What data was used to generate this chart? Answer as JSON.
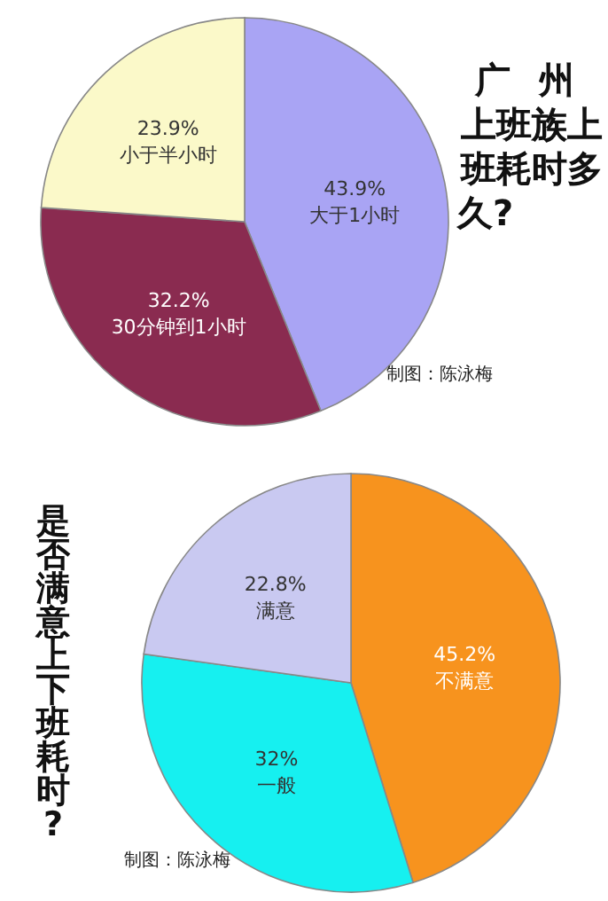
{
  "chart_data": [
    {
      "type": "pie",
      "title": "广州上班族上班耗时多久?",
      "categories": [
        "大于1小时",
        "30分钟到1小时",
        "小于半小时"
      ],
      "values": [
        43.9,
        32.2,
        23.9
      ],
      "value_labels": [
        "43.9%",
        "32.2%",
        "23.9%"
      ],
      "colors": [
        "#a9a4f4",
        "#8a2b50",
        "#fbf9c9"
      ],
      "annotations": [
        "制图：陈泳梅"
      ]
    },
    {
      "type": "pie",
      "title": "是否满意上下班耗时?",
      "categories": [
        "不满意",
        "一般",
        "满意"
      ],
      "values": [
        45.2,
        32,
        22.8
      ],
      "value_labels": [
        "45.2%",
        "32%",
        "22.8%"
      ],
      "colors": [
        "#f7931e",
        "#16f0f0",
        "#c9c9f1"
      ],
      "annotations": [
        "制图：陈泳梅"
      ]
    }
  ]
}
